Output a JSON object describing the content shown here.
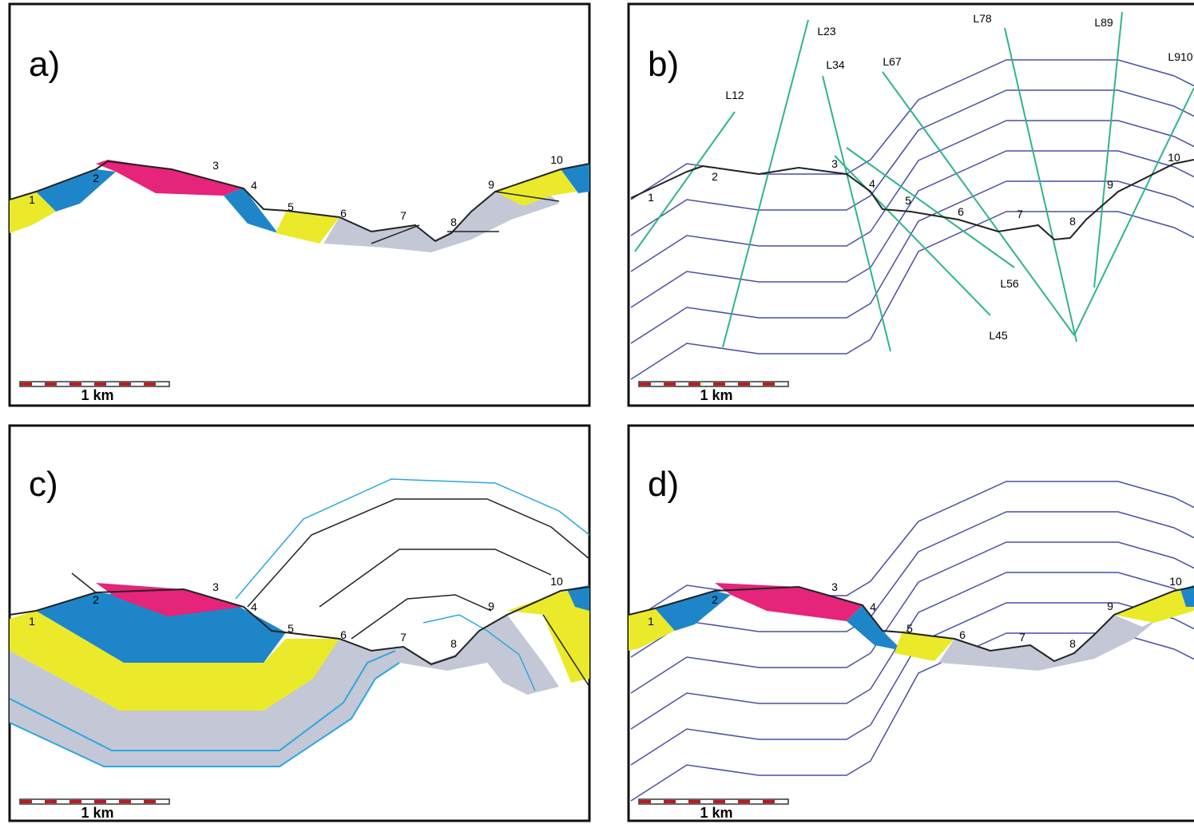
{
  "panels": [
    {
      "label": "a)",
      "points": [
        "1",
        "2",
        "3",
        "4",
        "5",
        "6",
        "7",
        "8",
        "9",
        "10"
      ],
      "scale": "1 km"
    },
    {
      "label": "b)",
      "points": [
        "1",
        "2",
        "3",
        "4",
        "5",
        "6",
        "7",
        "8",
        "9",
        "10"
      ],
      "scale": "1 km",
      "lines": [
        "L12",
        "L23",
        "L34",
        "L45",
        "L56",
        "L67",
        "L78",
        "L89",
        "L910"
      ]
    },
    {
      "label": "c)",
      "points": [
        "1",
        "2",
        "3",
        "4",
        "5",
        "6",
        "7",
        "8",
        "9",
        "10"
      ],
      "scale": "1 km"
    },
    {
      "label": "d)",
      "points": [
        "1",
        "2",
        "3",
        "4",
        "5",
        "6",
        "7",
        "8",
        "9",
        "10"
      ],
      "scale": "1 km"
    }
  ]
}
